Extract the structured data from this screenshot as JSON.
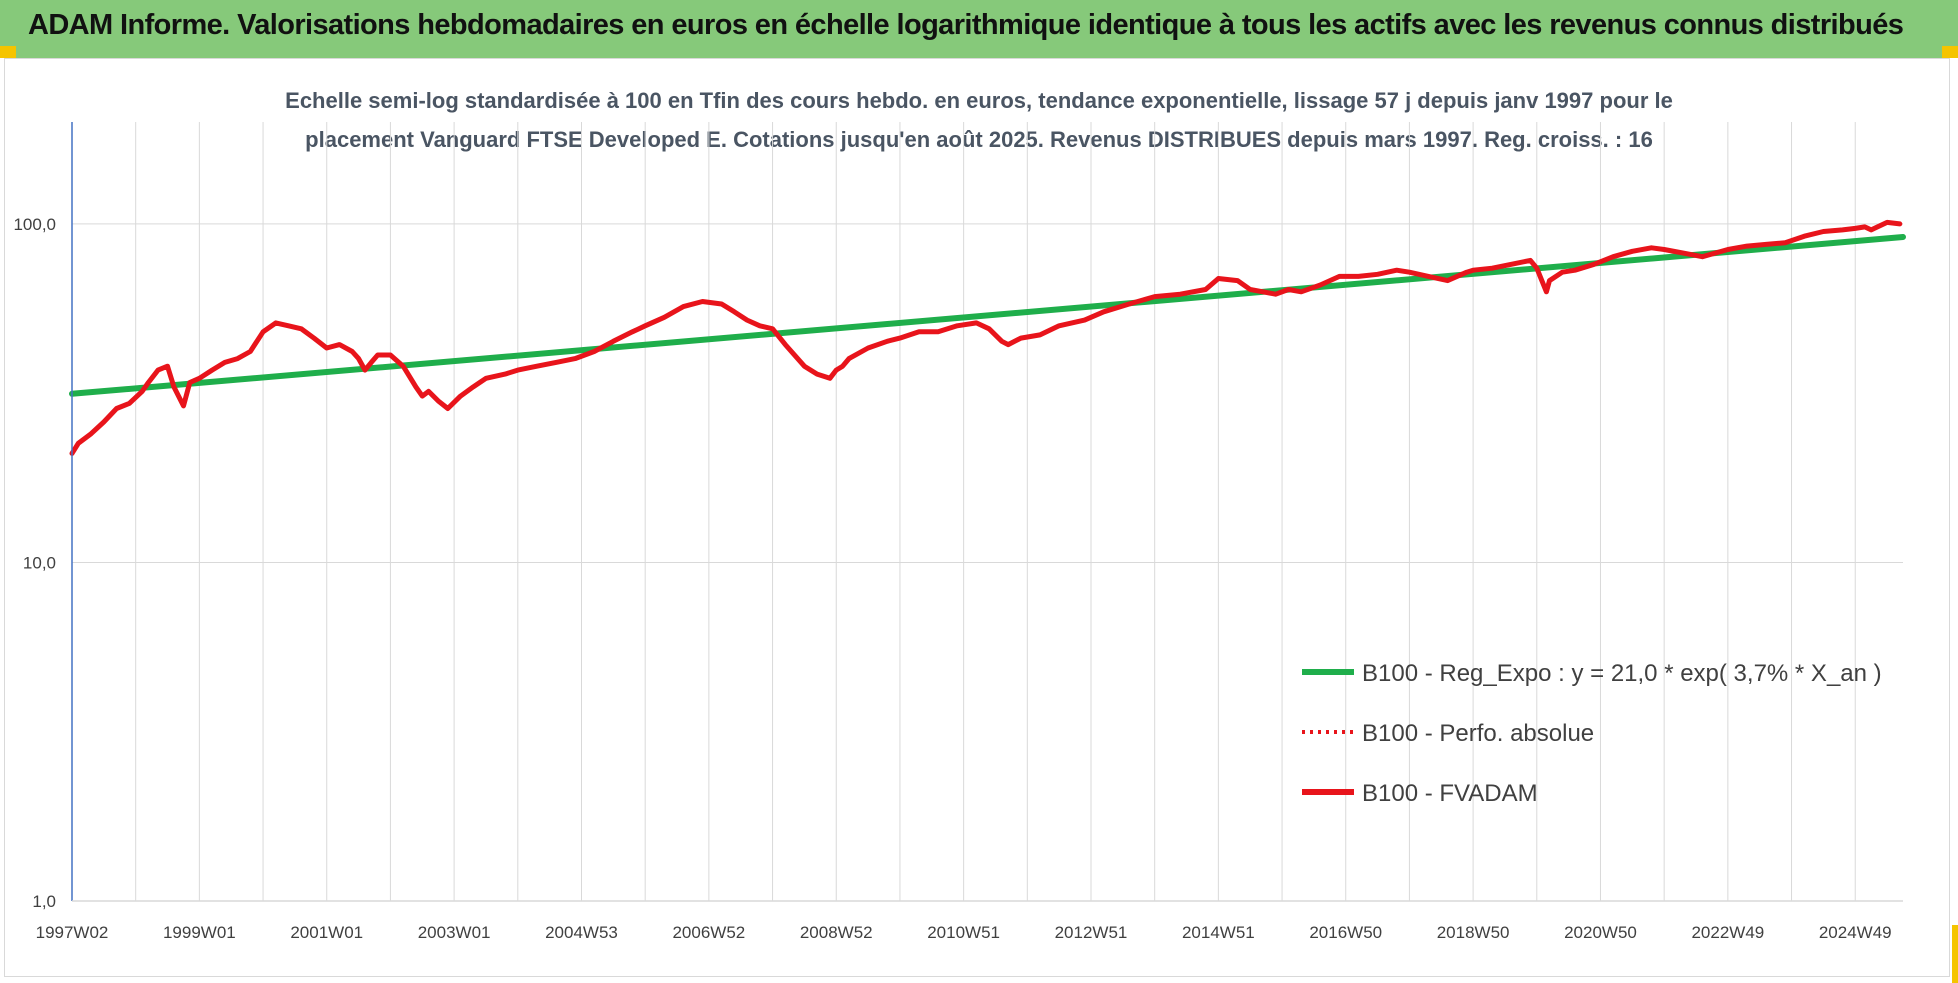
{
  "banner": {
    "title": "ADAM Informe. Valorisations hebdomadaires en euros en échelle logarithmique identique à tous les actifs avec les revenus connus distribués"
  },
  "colors": {
    "banner_bg": "#86c97a",
    "trend": "#1fae4b",
    "perf_absolue": "#e8141b",
    "fvadam": "#e8141b",
    "grid": "#d9d9d9"
  },
  "chart_data": {
    "type": "line",
    "subtitle_lines": [
      "Echelle semi-log standardisée à 100 en Tfin des cours hebdo. en euros, tendance exponentielle, lissage 57 j depuis janv 1997 pour le",
      "placement Vanguard FTSE Developed E. Cotations jusqu'en août 2025. Revenus DISTRIBUES depuis mars 1997. Reg. croiss. : 16"
    ],
    "y_scale": "log",
    "ylim": [
      1,
      200
    ],
    "y_ticks": [
      {
        "value": 1,
        "label": "1,0"
      },
      {
        "value": 10,
        "label": "10,0"
      },
      {
        "value": 100,
        "label": "100,0"
      }
    ],
    "x_unit": "years",
    "xlim": [
      1997.0,
      2025.75
    ],
    "x_ticks": [
      {
        "value": 1997.0,
        "label": "1997W02"
      },
      {
        "value": 1999.0,
        "label": "1999W01"
      },
      {
        "value": 2001.0,
        "label": "2001W01"
      },
      {
        "value": 2003.0,
        "label": "2003W01"
      },
      {
        "value": 2005.0,
        "label": "2004W53"
      },
      {
        "value": 2007.0,
        "label": "2006W52"
      },
      {
        "value": 2009.0,
        "label": "2008W52"
      },
      {
        "value": 2011.0,
        "label": "2010W51"
      },
      {
        "value": 2013.0,
        "label": "2012W51"
      },
      {
        "value": 2015.0,
        "label": "2014W51"
      },
      {
        "value": 2017.0,
        "label": "2016W50"
      },
      {
        "value": 2019.0,
        "label": "2018W50"
      },
      {
        "value": 2021.0,
        "label": "2020W50"
      },
      {
        "value": 2023.0,
        "label": "2022W49"
      },
      {
        "value": 2025.0,
        "label": "2024W49"
      }
    ],
    "grid": true,
    "legend_position": "bottom-right",
    "series": [
      {
        "name": "B100 - Reg_Expo : y = 21,0 * exp( 3,7% *  X_an )",
        "style": "solid",
        "x": [
          1997.0,
          2025.75
        ],
        "y": [
          31.5,
          91.5
        ]
      },
      {
        "name": "B100 - Perfo. absolue",
        "style": "dotted",
        "x": [],
        "y": []
      },
      {
        "name": "B100 - FVADAM",
        "style": "solid",
        "x": [
          1997.0,
          1997.1,
          1997.3,
          1997.5,
          1997.7,
          1997.9,
          1998.1,
          1998.2,
          1998.35,
          1998.5,
          1998.6,
          1998.75,
          1998.85,
          1999.0,
          1999.2,
          1999.4,
          1999.6,
          1999.8,
          2000.0,
          2000.2,
          2000.4,
          2000.6,
          2000.8,
          2001.0,
          2001.2,
          2001.4,
          2001.5,
          2001.6,
          2001.7,
          2001.8,
          2002.0,
          2002.2,
          2002.4,
          2002.5,
          2002.6,
          2002.75,
          2002.9,
          2003.1,
          2003.3,
          2003.5,
          2003.8,
          2004.0,
          2004.3,
          2004.6,
          2004.9,
          2005.2,
          2005.5,
          2005.8,
          2006.0,
          2006.3,
          2006.6,
          2006.9,
          2007.2,
          2007.4,
          2007.6,
          2007.8,
          2008.0,
          2008.2,
          2008.5,
          2008.7,
          2008.9,
          2009.0,
          2009.1,
          2009.2,
          2009.5,
          2009.8,
          2010.0,
          2010.3,
          2010.6,
          2010.9,
          2011.2,
          2011.4,
          2011.6,
          2011.7,
          2011.9,
          2012.2,
          2012.5,
          2012.9,
          2013.2,
          2013.6,
          2014.0,
          2014.4,
          2014.8,
          2015.0,
          2015.3,
          2015.5,
          2015.7,
          2015.9,
          2016.1,
          2016.3,
          2016.6,
          2016.9,
          2017.2,
          2017.5,
          2017.8,
          2018.0,
          2018.3,
          2018.6,
          2018.9,
          2019.0,
          2019.3,
          2019.6,
          2019.9,
          2020.0,
          2020.15,
          2020.2,
          2020.4,
          2020.6,
          2020.9,
          2021.2,
          2021.5,
          2021.8,
          2022.0,
          2022.3,
          2022.6,
          2022.8,
          2023.0,
          2023.3,
          2023.6,
          2023.9,
          2024.2,
          2024.5,
          2024.8,
          2025.0,
          2025.15,
          2025.25,
          2025.35,
          2025.5,
          2025.7
        ],
        "y": [
          21,
          22.5,
          24,
          26,
          28.5,
          29.5,
          32,
          34,
          37,
          38,
          33,
          29,
          34,
          35,
          37,
          39,
          40,
          42,
          48,
          51,
          50,
          49,
          46,
          43,
          44,
          42,
          40,
          37,
          39,
          41,
          41,
          38,
          33,
          31,
          32,
          30,
          28.5,
          31,
          33,
          35,
          36,
          37,
          38,
          39,
          40,
          42,
          45,
          48,
          50,
          53,
          57,
          59,
          58,
          55,
          52,
          50,
          49,
          44,
          38,
          36,
          35,
          37,
          38,
          40,
          43,
          45,
          46,
          48,
          48,
          50,
          51,
          49,
          45,
          44,
          46,
          47,
          50,
          52,
          55,
          58,
          61,
          62,
          64,
          69,
          68,
          64,
          63,
          62,
          64,
          63,
          66,
          70,
          70,
          71,
          73,
          72,
          70,
          68,
          72,
          73,
          74,
          76,
          78,
          74,
          63,
          68,
          72,
          73,
          76,
          80,
          83,
          85,
          84,
          82,
          80,
          82,
          84,
          86,
          87,
          88,
          92,
          95,
          96,
          97,
          98,
          96,
          98,
          101,
          100
        ]
      }
    ]
  }
}
